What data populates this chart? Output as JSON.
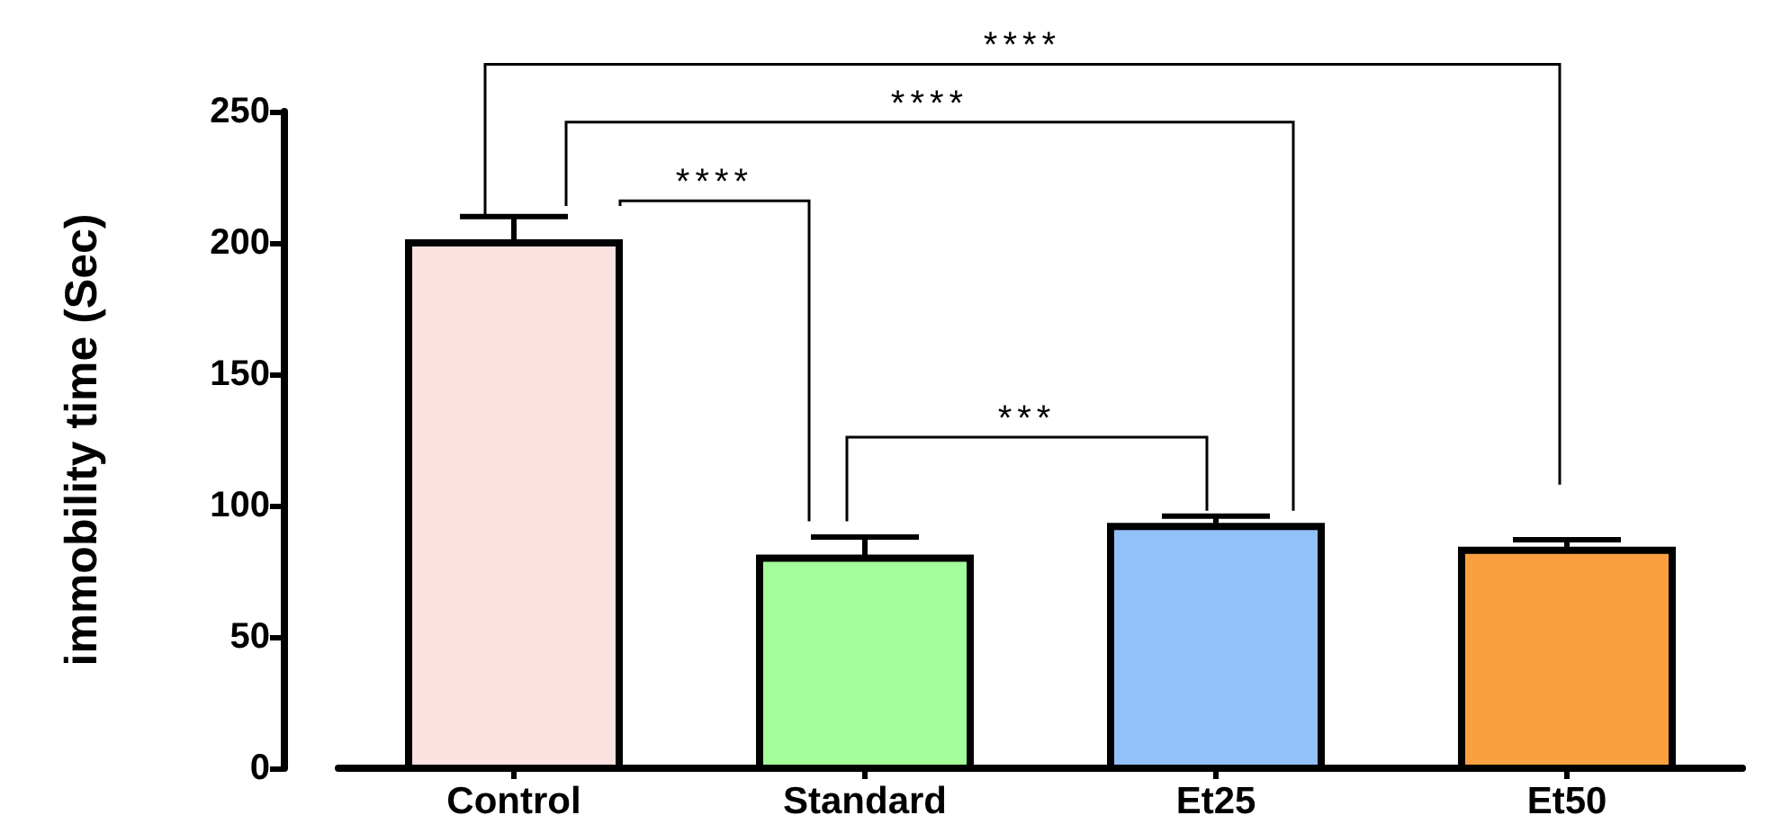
{
  "chart_data": {
    "type": "bar",
    "ylabel": "immobility time (Sec)",
    "categories": [
      "Control",
      "Standard",
      "Et25",
      "Et50"
    ],
    "values": [
      200,
      80,
      92,
      83
    ],
    "errors": [
      [
        200,
        210
      ],
      [
        80,
        88
      ],
      [
        92,
        96
      ],
      [
        83,
        87
      ]
    ],
    "colors": [
      "#fde0e0",
      "#a3fd9a",
      "#92c0f8",
      "#fba040"
    ],
    "ylim": [
      0,
      250
    ],
    "yticks": [
      0,
      50,
      100,
      150,
      200,
      250
    ],
    "grid": false,
    "annotations": [
      "****",
      "****",
      "****",
      "***"
    ]
  }
}
